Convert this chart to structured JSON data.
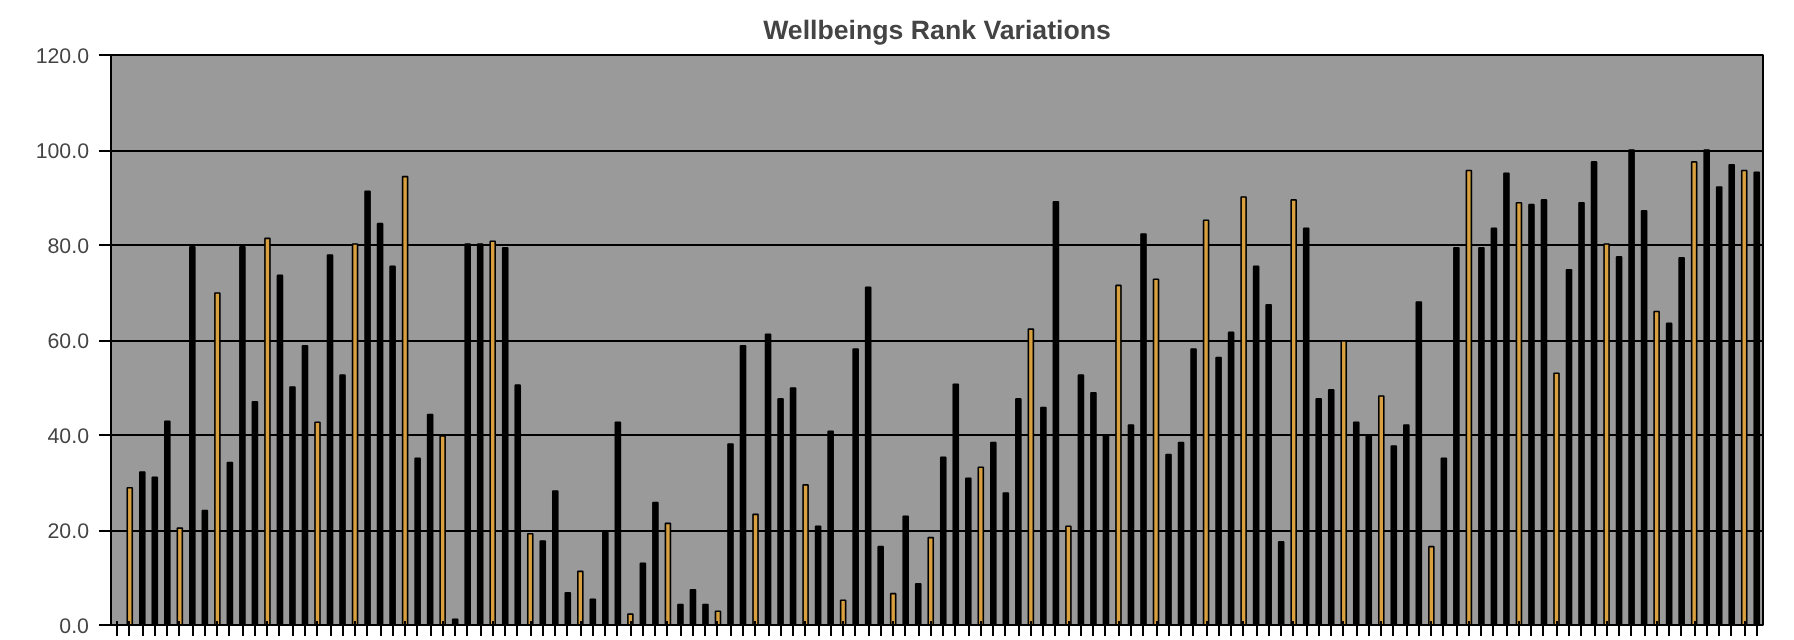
{
  "chart_data": {
    "type": "bar",
    "title": "Wellbeings Rank Variations",
    "categories": [
      null,
      null,
      null,
      null,
      null,
      null,
      null,
      null,
      null,
      null,
      null,
      null,
      null,
      null,
      null,
      null,
      null,
      null,
      null,
      null,
      null,
      null,
      null,
      null,
      null,
      null,
      null,
      null,
      null,
      null,
      null,
      null,
      null,
      null,
      null,
      null,
      null,
      null,
      null,
      null,
      null,
      null,
      null,
      null,
      null,
      null,
      null,
      null,
      null,
      null,
      null,
      null,
      null,
      null,
      null,
      null,
      null,
      null,
      null,
      null,
      null,
      null,
      null,
      null,
      null,
      null,
      null,
      null,
      null,
      null,
      null,
      null,
      null,
      null,
      null,
      null,
      null,
      null,
      null,
      null,
      null,
      null,
      null,
      null,
      null,
      null,
      null,
      null,
      null,
      null,
      null,
      null,
      null,
      null,
      null,
      null,
      null,
      null,
      null,
      null,
      null,
      null,
      null,
      null,
      null,
      null,
      null,
      null,
      null,
      null,
      null,
      null,
      null,
      null,
      null,
      null,
      null,
      null,
      null,
      null,
      null,
      null,
      null,
      null,
      null,
      null,
      null,
      null,
      null,
      null,
      null,
      null
    ],
    "values": [
      0,
      28.9,
      32.2,
      31.1,
      42.9,
      20.4,
      79.6,
      24.1,
      69.9,
      34.2,
      79.6,
      47.0,
      81.4,
      73.6,
      50.1,
      58.8,
      42.7,
      77.9,
      52.6,
      80.2,
      91.3,
      84.5,
      75.5,
      94.4,
      35.1,
      44.3,
      39.8,
      1.2,
      80.2,
      80.2,
      80.8,
      79.4,
      50.5,
      19.2,
      17.7,
      28.2,
      6.8,
      11.3,
      5.4,
      19.6,
      42.7,
      2.3,
      13.0,
      25.8,
      21.4,
      4.3,
      7.4,
      4.3,
      2.9,
      38.1,
      58.8,
      23.3,
      61.2,
      47.6,
      49.9,
      29.5,
      20.8,
      40.8,
      5.2,
      58.1,
      71.1,
      16.5,
      6.6,
      22.9,
      8.7,
      18.4,
      35.3,
      50.7,
      30.9,
      33.2,
      38.4,
      27.8,
      47.6,
      62.3,
      45.8,
      89.1,
      20.8,
      52.6,
      48.9,
      40.0,
      71.5,
      42.1,
      82.3,
      72.8,
      35.9,
      38.4,
      58.1,
      85.2,
      56.3,
      61.6,
      90.1,
      75.5,
      67.4,
      17.5,
      89.5,
      83.5,
      47.6,
      49.5,
      59.8,
      42.7,
      40.0,
      48.2,
      37.7,
      42.1,
      68.0,
      16.5,
      35.1,
      79.4,
      95.7,
      79.4,
      83.5,
      95.1,
      88.9,
      88.5,
      89.5,
      53.0,
      74.8,
      88.9,
      97.5,
      80.2,
      77.5,
      100.0,
      87.2,
      66.0,
      63.5,
      77.3,
      97.5,
      100.0,
      92.2,
      96.9,
      95.7,
      95.3
    ],
    "colors": [
      "#000000",
      "#d9a040",
      "#000000",
      "#000000",
      "#000000",
      "#d9a040",
      "#000000",
      "#000000",
      "#d9a040",
      "#000000",
      "#000000",
      "#000000",
      "#d9a040",
      "#000000",
      "#000000",
      "#000000",
      "#d9a040",
      "#000000",
      "#000000",
      "#d9a040",
      "#000000",
      "#000000",
      "#000000",
      "#d9a040",
      "#000000",
      "#000000",
      "#d9a040",
      "#000000",
      "#000000",
      "#000000",
      "#d9a040",
      "#000000",
      "#000000",
      "#d9a040",
      "#000000",
      "#000000",
      "#000000",
      "#d9a040",
      "#000000",
      "#000000",
      "#000000",
      "#d9a040",
      "#000000",
      "#000000",
      "#d9a040",
      "#000000",
      "#000000",
      "#000000",
      "#d9a040",
      "#000000",
      "#000000",
      "#d9a040",
      "#000000",
      "#000000",
      "#000000",
      "#d9a040",
      "#000000",
      "#000000",
      "#d9a040",
      "#000000",
      "#000000",
      "#000000",
      "#d9a040",
      "#000000",
      "#000000",
      "#d9a040",
      "#000000",
      "#000000",
      "#000000",
      "#d9a040",
      "#000000",
      "#000000",
      "#000000",
      "#d9a040",
      "#000000",
      "#000000",
      "#d9a040",
      "#000000",
      "#000000",
      "#000000",
      "#d9a040",
      "#000000",
      "#000000",
      "#d9a040",
      "#000000",
      "#000000",
      "#000000",
      "#d9a040",
      "#000000",
      "#000000",
      "#d9a040",
      "#000000",
      "#000000",
      "#000000",
      "#d9a040",
      "#000000",
      "#000000",
      "#000000",
      "#d9a040",
      "#000000",
      "#000000",
      "#d9a040",
      "#000000",
      "#000000",
      "#000000",
      "#d9a040",
      "#000000",
      "#000000",
      "#d9a040",
      "#000000",
      "#000000",
      "#000000",
      "#d9a040",
      "#000000",
      "#000000",
      "#d9a040",
      "#000000",
      "#000000",
      "#000000",
      "#d9a040",
      "#000000",
      "#000000",
      "#000000",
      "#d9a040",
      "#000000",
      "#000000",
      "#d9a040",
      "#000000",
      "#000000",
      "#000000",
      "#d9a040",
      "#000000"
    ],
    "ylim": [
      0,
      120
    ],
    "yticks": [
      {
        "value": 0,
        "label": "0.0"
      },
      {
        "value": 20,
        "label": "20.0"
      },
      {
        "value": 40,
        "label": "40.0"
      },
      {
        "value": 60,
        "label": "60.0"
      },
      {
        "value": 80,
        "label": "80.0"
      },
      {
        "value": 100,
        "label": "100.0"
      },
      {
        "value": 120,
        "label": "120.0"
      }
    ],
    "grid": "y"
  }
}
